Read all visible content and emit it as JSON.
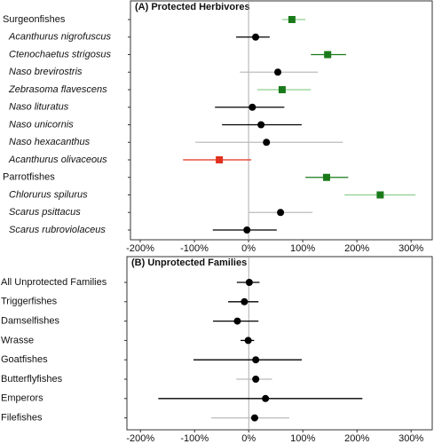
{
  "chart_data": [
    {
      "type": "forest",
      "title": "(A) Protected Herbivores",
      "categories": [
        "Surgeonfishes",
        "Acanthurus nigrofuscus",
        "Ctenochaetus strigosus",
        "Naso brevirostris",
        "Zebrasoma flavescens",
        "Naso lituratus",
        "Naso unicornis",
        "Naso hexacanthus",
        "Acanthurus olivaceous",
        "Parrotfishes",
        "Chlorurus spilurus",
        "Scarus psittacus",
        "Scarus rubroviolaceus"
      ],
      "label_styles": [
        "normal",
        "italic",
        "italic",
        "italic",
        "italic",
        "italic",
        "italic",
        "italic",
        "italic",
        "normal",
        "italic",
        "italic",
        "italic"
      ],
      "values": [
        80,
        13,
        146,
        54,
        62,
        7,
        23,
        33,
        -54,
        144,
        243,
        59,
        -3
      ],
      "lower": [
        62,
        -23,
        115,
        -16,
        16,
        -62,
        -49,
        -98,
        -121,
        105,
        177,
        0,
        -66
      ],
      "upper": [
        105,
        39,
        180,
        128,
        115,
        66,
        98,
        174,
        5,
        184,
        308,
        118,
        52
      ],
      "markers": [
        "square",
        "circle",
        "square",
        "circle",
        "square",
        "circle",
        "circle",
        "circle",
        "square",
        "square",
        "square",
        "circle",
        "circle"
      ],
      "colors": [
        "#1a7a1a",
        "#000000",
        "#1a7a1a",
        "#000000",
        "#1a7a1a",
        "#000000",
        "#000000",
        "#000000",
        "#e0301e",
        "#1a7a1a",
        "#1a7a1a",
        "#000000",
        "#000000"
      ],
      "line_colors": [
        "#8fd08f",
        "#000000",
        "#1a7a1a",
        "#bbbbbb",
        "#8fd08f",
        "#000000",
        "#000000",
        "#bbbbbb",
        "#e0301e",
        "#1a7a1a",
        "#8fd08f",
        "#bbbbbb",
        "#000000"
      ],
      "xlim": [
        -218,
        339
      ],
      "xticks": [
        {
          "value": -200,
          "label": "-200%"
        },
        {
          "value": -100,
          "label": "-100%"
        },
        {
          "value": 0,
          "label": "0%"
        },
        {
          "value": 100,
          "label": "100%"
        },
        {
          "value": 200,
          "label": "200%"
        },
        {
          "value": 300,
          "label": "300%"
        }
      ]
    },
    {
      "type": "forest",
      "title": "(B) Unprotected Families",
      "categories": [
        "All Unprotected Families",
        "Triggerfishes",
        "Damselfishes",
        "Wrasse",
        "Goatfishes",
        "Butterflyfishes",
        "Emperors",
        "Filefishes"
      ],
      "label_styles": [
        "normal",
        "normal",
        "normal",
        "normal",
        "normal",
        "normal",
        "normal",
        "normal"
      ],
      "values": [
        1,
        -8,
        -21,
        -1,
        13,
        13,
        31,
        11
      ],
      "lower": [
        -22,
        -38,
        -66,
        -15,
        -102,
        -23,
        -167,
        -69
      ],
      "upper": [
        20,
        18,
        18,
        10,
        98,
        43,
        210,
        75
      ],
      "markers": [
        "circle",
        "circle",
        "circle",
        "circle",
        "circle",
        "circle",
        "circle",
        "circle"
      ],
      "colors": [
        "#000000",
        "#000000",
        "#000000",
        "#000000",
        "#000000",
        "#000000",
        "#000000",
        "#000000"
      ],
      "line_colors": [
        "#000000",
        "#000000",
        "#000000",
        "#000000",
        "#000000",
        "#bbbbbb",
        "#000000",
        "#bbbbbb"
      ],
      "xlim": [
        -225,
        339
      ],
      "xticks": [
        {
          "value": -200,
          "label": "-200%"
        },
        {
          "value": -100,
          "label": "-100%"
        },
        {
          "value": 0,
          "label": "0%"
        },
        {
          "value": 100,
          "label": "100%"
        },
        {
          "value": 200,
          "label": "200%"
        },
        {
          "value": 300,
          "label": "300%"
        }
      ]
    }
  ]
}
